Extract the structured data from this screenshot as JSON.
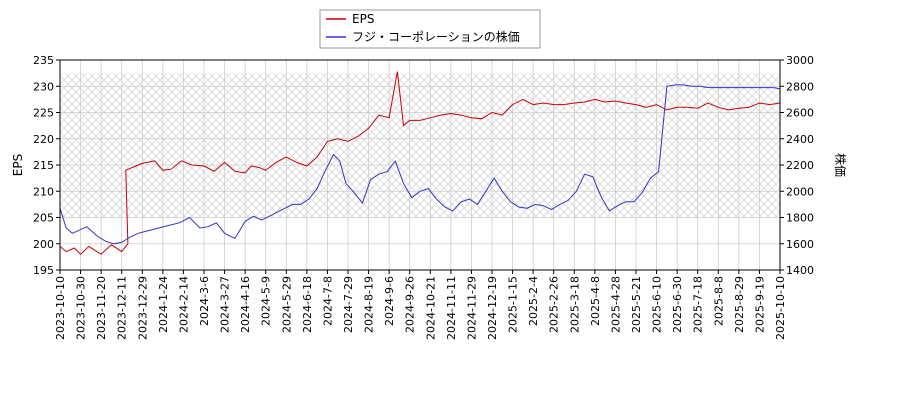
{
  "chart_data": {
    "type": "line",
    "legend": {
      "placement": "top-center",
      "entries": [
        "EPS",
        "フジ・コーポレーションの株価"
      ]
    },
    "hatched_background": true,
    "grid": true,
    "y_left": {
      "label": "EPS",
      "min": 195,
      "max": 235,
      "ticks": [
        "195",
        "200",
        "205",
        "210",
        "215",
        "220",
        "225",
        "230",
        "235"
      ]
    },
    "y_right": {
      "label": "株価",
      "min": 1400,
      "max": 3000,
      "ticks": [
        "1400",
        "1600",
        "1800",
        "2000",
        "2200",
        "2400",
        "2600",
        "2800",
        "3000"
      ]
    },
    "x_ticks": [
      "2023-10-10",
      "2023-10-30",
      "2023-11-20",
      "2023-12-11",
      "2023-12-29",
      "2024-1-24",
      "2024-2-14",
      "2024-3-6",
      "2024-3-27",
      "2024-4-16",
      "2024-5-9",
      "2024-5-29",
      "2024-6-18",
      "2024-7-8",
      "2024-7-29",
      "2024-8-19",
      "2024-9-6",
      "2024-9-26",
      "2024-10-21",
      "2024-11-11",
      "2024-11-29",
      "2024-12-19",
      "2025-1-15",
      "2025-2-4",
      "2025-2-26",
      "2025-3-18",
      "2025-4-8",
      "2025-4-28",
      "2025-5-21",
      "2025-6-10",
      "2025-6-30",
      "2025-7-18",
      "2025-8-8",
      "2025-8-29",
      "2025-9-19",
      "2025-10-10"
    ],
    "series": [
      {
        "name": "EPS",
        "color": "#cc0000",
        "axis": "left",
        "x": [
          0,
          0.3,
          0.7,
          1,
          1.4,
          2,
          2.5,
          3,
          3.3,
          3.2,
          3.5,
          4,
          4.6,
          5,
          5.4,
          5.9,
          6.4,
          7,
          7.5,
          8,
          8.5,
          9,
          9.3,
          9.7,
          10,
          10.5,
          11,
          11.5,
          12,
          12.5,
          13,
          13.5,
          14,
          14.5,
          15,
          15.5,
          16,
          16.4,
          16.7,
          17,
          17.5,
          18,
          18.5,
          19,
          19.5,
          20,
          20.5,
          21,
          21.5,
          22,
          22.5,
          23,
          23.5,
          24,
          24.5,
          25,
          25.5,
          26,
          26.5,
          27,
          27.5,
          28,
          28.5,
          29,
          29.5,
          30,
          30.5,
          31,
          31.5,
          32,
          32.5,
          33,
          33.5,
          34,
          34.5,
          35
        ],
        "y": [
          199.5,
          198.5,
          199.2,
          198,
          199.5,
          198,
          199.8,
          198.5,
          200,
          214,
          214.5,
          215.3,
          215.8,
          214,
          214.2,
          215.8,
          215,
          214.8,
          213.8,
          215.5,
          213.8,
          213.5,
          214.8,
          214.5,
          214,
          215.5,
          216.5,
          215.5,
          214.8,
          216.5,
          219.5,
          220,
          219.5,
          220.5,
          222,
          224.5,
          224,
          232.8,
          222.5,
          223.5,
          223.5,
          224,
          224.5,
          224.8,
          224.5,
          224,
          223.8,
          225,
          224.5,
          226.5,
          227.5,
          226.5,
          226.8,
          226.5,
          226.5,
          226.8,
          227,
          227.5,
          227,
          227.2,
          226.8,
          226.5,
          226,
          226.5,
          225.5,
          226,
          226,
          225.8,
          226.8,
          226,
          225.5,
          225.8,
          226,
          226.8,
          226.5,
          226.8
        ]
      },
      {
        "name": "フジ・コーポレーションの株価",
        "color": "#3333cc",
        "axis": "right",
        "x": [
          0,
          0.3,
          0.6,
          0.9,
          1.3,
          1.8,
          2.2,
          2.6,
          3,
          3.4,
          3.8,
          4.3,
          4.8,
          5.3,
          5.8,
          6.3,
          6.8,
          7.2,
          7.6,
          8,
          8.5,
          9,
          9.4,
          9.8,
          10.3,
          10.8,
          11.3,
          11.7,
          12.1,
          12.5,
          12.9,
          13.3,
          13.6,
          13.9,
          14.3,
          14.7,
          15.1,
          15.5,
          15.9,
          16.3,
          16.7,
          17.1,
          17.5,
          17.9,
          18.3,
          18.7,
          19.1,
          19.5,
          19.9,
          20.3,
          20.7,
          21.1,
          21.5,
          21.9,
          22.3,
          22.7,
          23.1,
          23.5,
          23.9,
          24.3,
          24.7,
          25.1,
          25.5,
          25.9,
          26.3,
          26.7,
          27.1,
          27.5,
          27.9,
          28.3,
          28.7,
          29.1,
          29.5,
          29.9,
          30.3,
          30.7,
          31.1,
          31.5,
          31.9,
          32.3,
          32.7,
          33.1,
          33.5,
          33.9,
          34.3,
          34.7,
          35
        ],
        "y": [
          1870,
          1720,
          1680,
          1700,
          1730,
          1660,
          1620,
          1600,
          1610,
          1650,
          1680,
          1700,
          1720,
          1740,
          1760,
          1800,
          1720,
          1730,
          1760,
          1680,
          1640,
          1770,
          1810,
          1780,
          1820,
          1860,
          1900,
          1900,
          1940,
          2020,
          2160,
          2280,
          2230,
          2060,
          1990,
          1910,
          2090,
          2130,
          2150,
          2230,
          2060,
          1950,
          2000,
          2020,
          1940,
          1880,
          1850,
          1920,
          1940,
          1900,
          2000,
          2100,
          2000,
          1920,
          1880,
          1870,
          1900,
          1890,
          1860,
          1900,
          1930,
          2000,
          2130,
          2110,
          1960,
          1850,
          1890,
          1920,
          1920,
          1990,
          2100,
          2150,
          2800,
          2810,
          2810,
          2800,
          2800,
          2790,
          2790,
          2790,
          2790,
          2790,
          2790,
          2790,
          2790,
          2790,
          2780
        ]
      }
    ]
  }
}
